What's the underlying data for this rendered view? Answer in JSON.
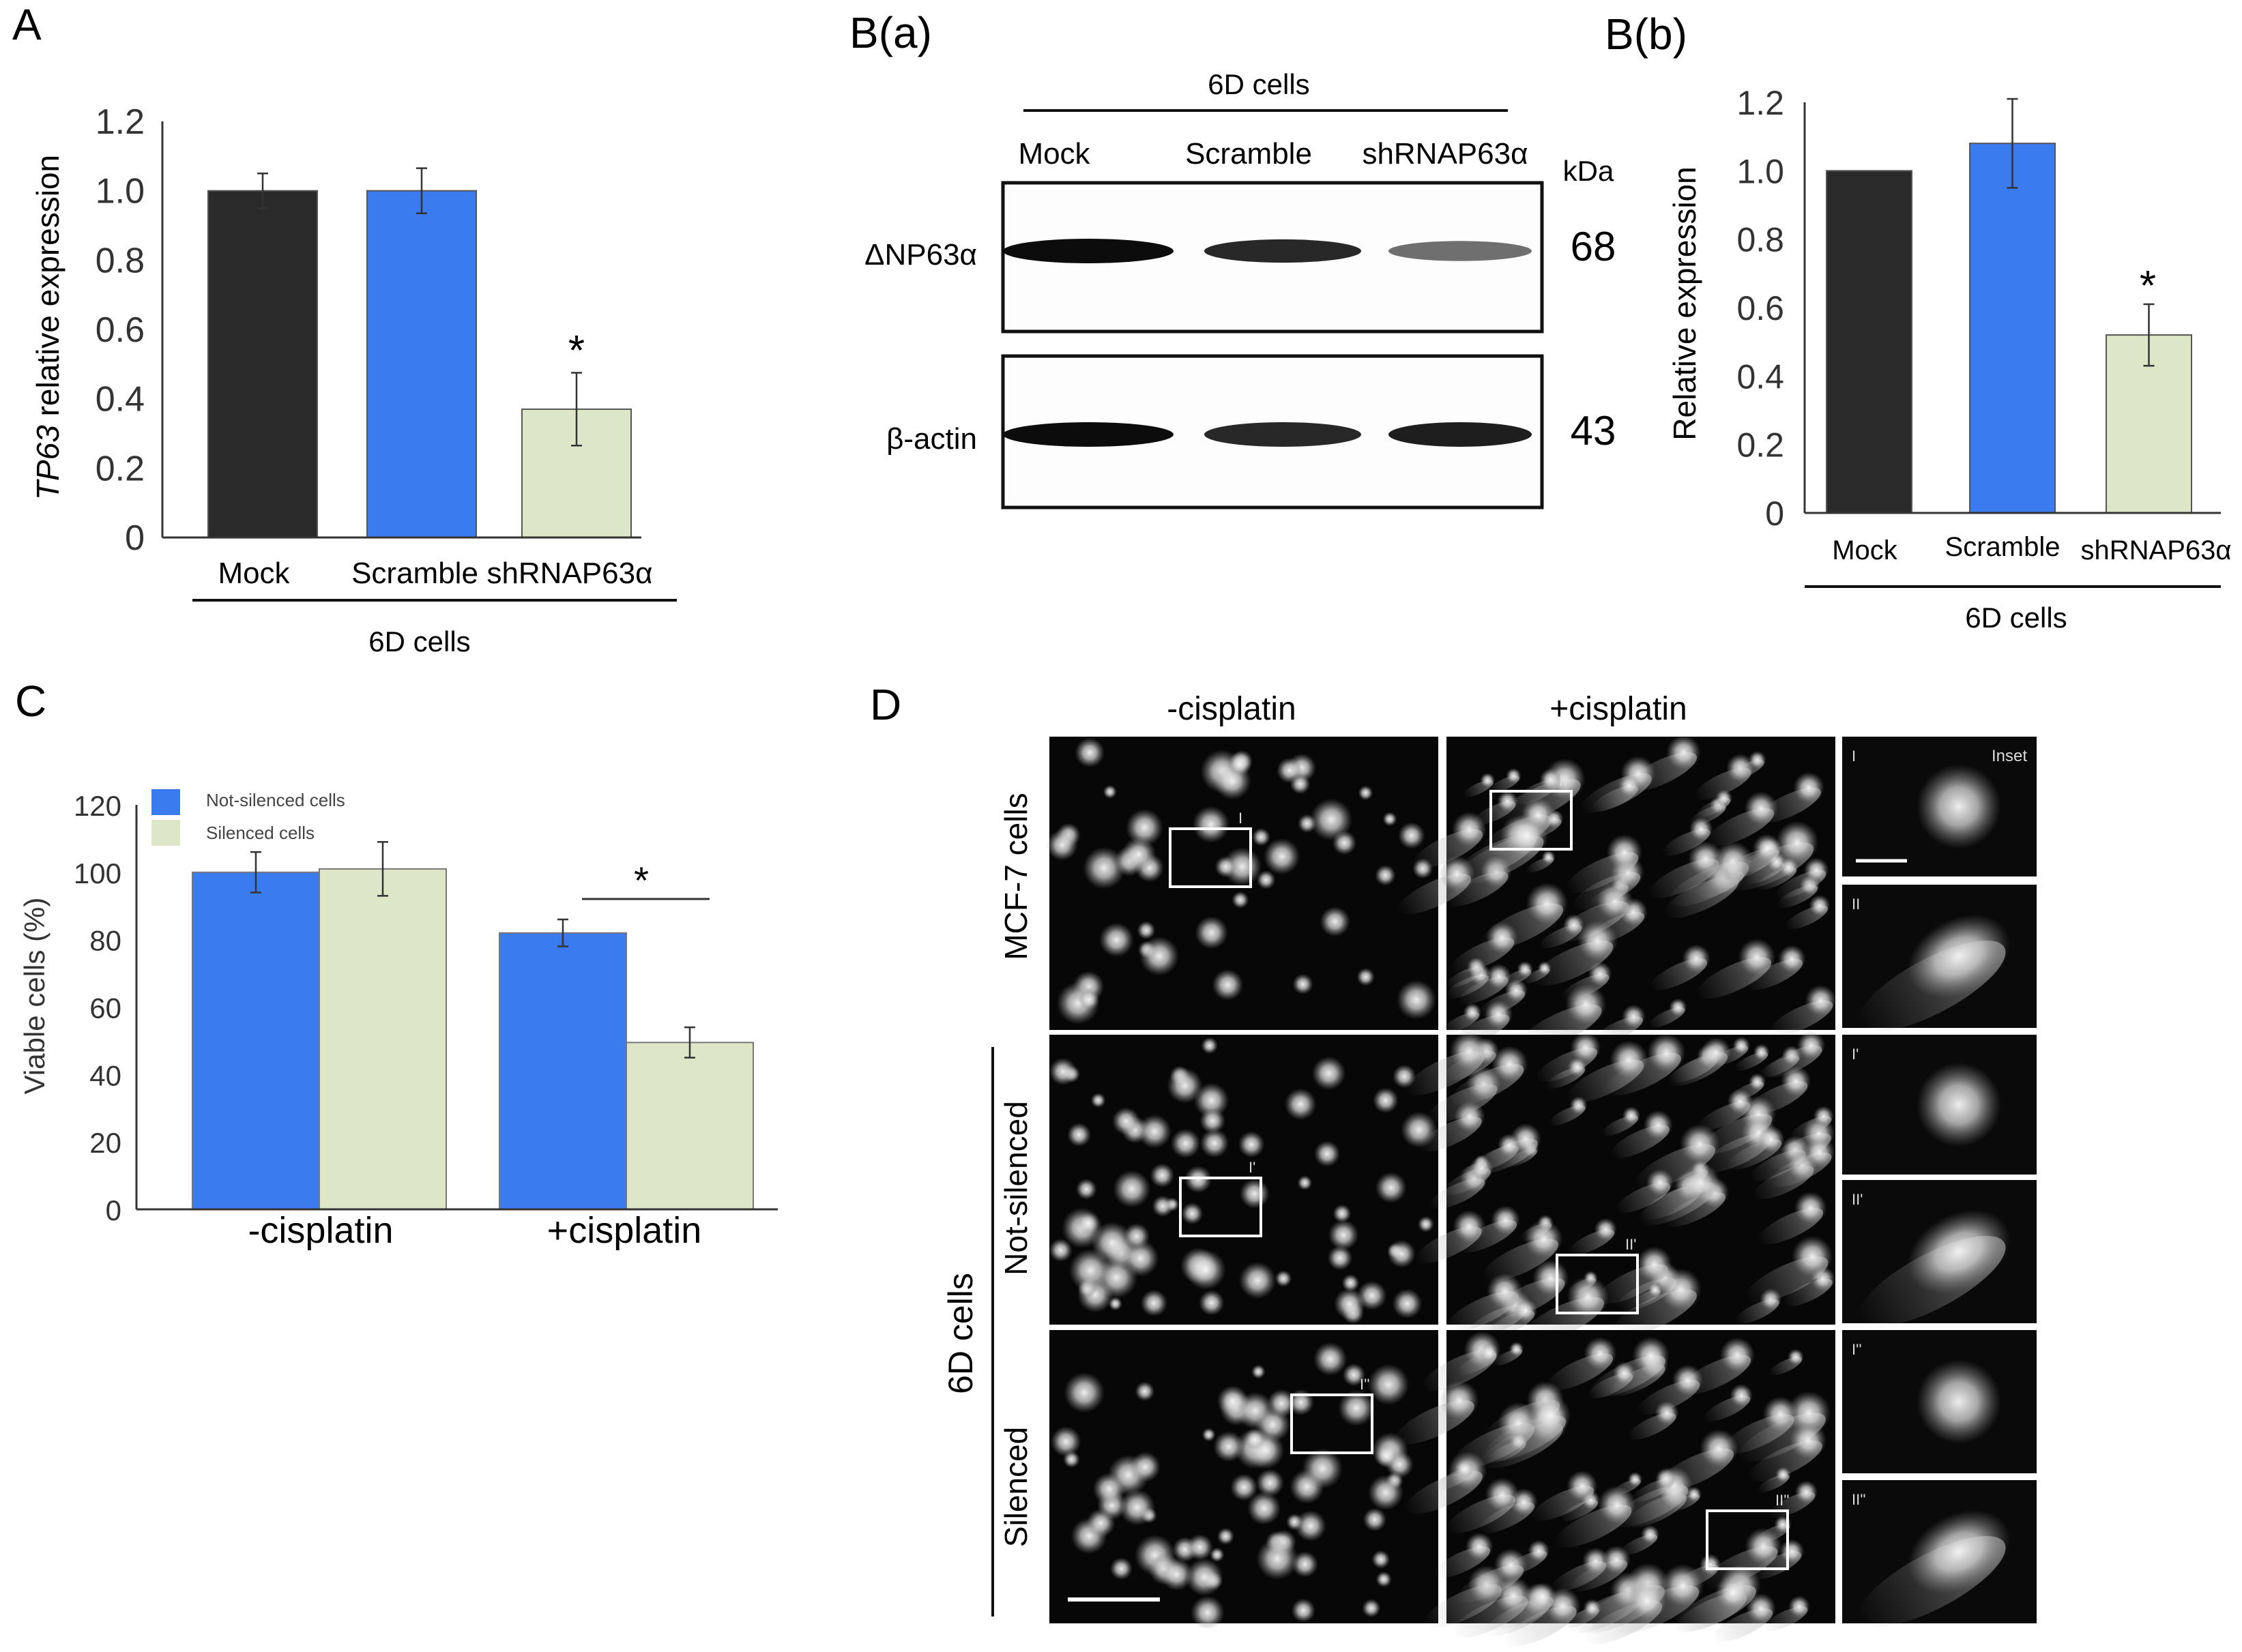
{
  "panels": {
    "A": {
      "label": "A"
    },
    "Ba": {
      "label": "B(a)"
    },
    "Bb": {
      "label": "B(b)"
    },
    "C": {
      "label": "C"
    },
    "D": {
      "label": "D"
    }
  },
  "colors": {
    "mock": "#2a2a2a",
    "scramble": "#3a7bf0",
    "shrna": "#dde6c6",
    "not_silenced": "#3a7bf0",
    "silenced": "#dde6c6"
  },
  "chart_data": [
    {
      "id": "A",
      "type": "bar",
      "categories": [
        "Mock",
        "Scramble",
        "shRNAP63α"
      ],
      "values": [
        1.0,
        1.0,
        0.37
      ],
      "errors": [
        0.05,
        0.065,
        0.105
      ],
      "ylabel_italic": "TP63",
      "ylabel_rest": " relative expression",
      "ylim": [
        0,
        1.2
      ],
      "yticks": [
        "0",
        "0.2",
        "0.4",
        "0.6",
        "0.8",
        "1.0",
        "1.2"
      ],
      "group_label": "6D cells",
      "significance": "*"
    },
    {
      "id": "Bb",
      "type": "bar",
      "categories": [
        "Mock",
        "Scramble",
        "shRNAP63α"
      ],
      "values": [
        1.0,
        1.08,
        0.52
      ],
      "errors": [
        0,
        0.13,
        0.09
      ],
      "ylabel": "Relative expression",
      "ylim": [
        0,
        1.2
      ],
      "yticks": [
        "0",
        "0.2",
        "0.4",
        "0.6",
        "0.8",
        "1.0",
        "1.2"
      ],
      "group_label": "6D cells",
      "significance": "*"
    },
    {
      "id": "C",
      "type": "bar",
      "categories": [
        "-cisplatin",
        "+cisplatin"
      ],
      "series": [
        {
          "name": "Not-silenced cells",
          "values": [
            100,
            82
          ],
          "errors": [
            6,
            4
          ]
        },
        {
          "name": "Silenced cells",
          "values": [
            101,
            49.5
          ],
          "errors": [
            8,
            4.5
          ]
        }
      ],
      "ylabel": "Viable cells (%)",
      "ylim": [
        0,
        120
      ],
      "yticks": [
        "0",
        "20",
        "40",
        "60",
        "80",
        "100",
        "120"
      ],
      "legend": "top-left",
      "significance": "*"
    }
  ],
  "blot": {
    "group_label": "6D cells",
    "lanes": [
      "Mock",
      "Scramble",
      "shRNAP63α"
    ],
    "unit": "kDa",
    "rows": [
      {
        "protein": "ΔNP63α",
        "kda": "68",
        "intensity": [
          1.0,
          0.85,
          0.45
        ]
      },
      {
        "protein": "β-actin",
        "kda": "43",
        "intensity": [
          1.0,
          0.85,
          0.9
        ]
      }
    ]
  },
  "micro": {
    "col_titles": [
      "-cisplatin",
      "+cisplatin"
    ],
    "row_labels": [
      "MCF-7 cells",
      "Not-silenced",
      "Silenced"
    ],
    "group_label": "6D cells",
    "inset_title": "Inset",
    "box_labels": [
      "I",
      "II",
      "I'",
      "II'",
      "I''",
      "II''"
    ],
    "inset_labels": [
      "I",
      "II",
      "I'",
      "II'",
      "I''",
      "II''"
    ]
  }
}
